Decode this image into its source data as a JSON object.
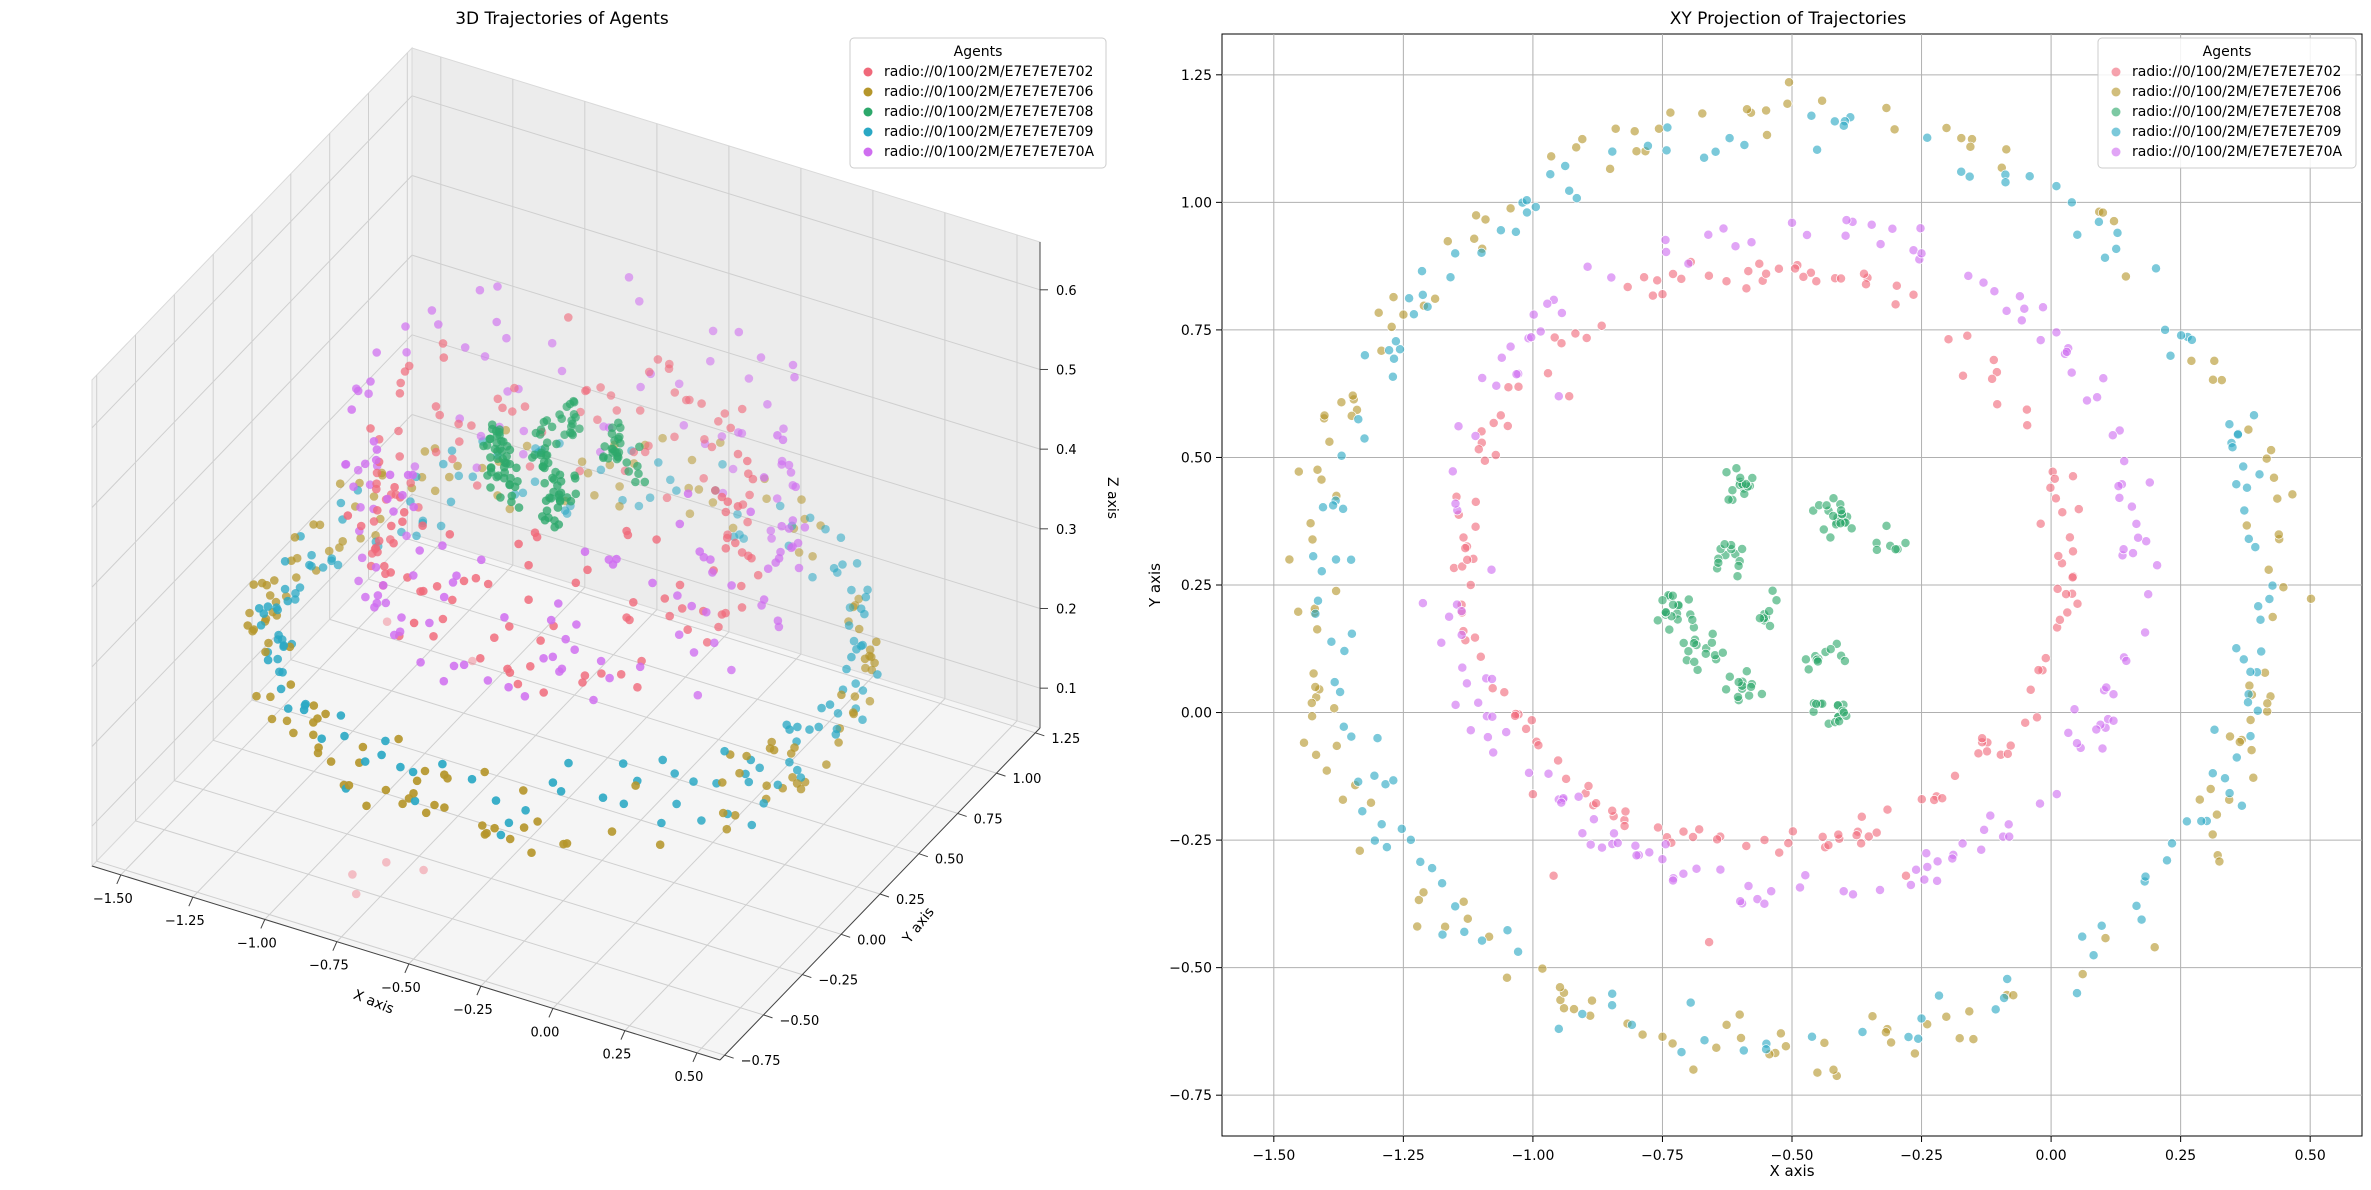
{
  "chart_data": [
    {
      "type": "scatter3d",
      "title": "3D Trajectories of Agents",
      "xlabel": "X axis",
      "ylabel": "Y axis",
      "zlabel": "Z axis",
      "xlim": [
        -1.6,
        0.58
      ],
      "ylim": [
        -0.78,
        1.28
      ],
      "zlim": [
        0.05,
        0.66
      ],
      "xticks": [
        -1.5,
        -1.25,
        -1.0,
        -0.75,
        -0.5,
        -0.25,
        0.0,
        0.25,
        0.5
      ],
      "yticks": [
        -0.75,
        -0.5,
        -0.25,
        0.0,
        0.25,
        0.5,
        0.75,
        1.0,
        1.25
      ],
      "zticks": [
        0.1,
        0.2,
        0.3,
        0.4,
        0.5,
        0.6
      ],
      "xtick_labels": [
        "−1.50",
        "−1.25",
        "−1.00",
        "−0.75",
        "−0.50",
        "−0.25",
        "0.00",
        "0.25",
        "0.50"
      ],
      "ytick_labels": [
        "−0.75",
        "−0.50",
        "−0.25",
        "0.00",
        "0.25",
        "0.50",
        "0.75",
        "1.00",
        "1.25"
      ],
      "ztick_labels": [
        "0.1",
        "0.2",
        "0.3",
        "0.4",
        "0.5",
        "0.6"
      ],
      "legend": {
        "title": "Agents",
        "placement": "upper-right"
      },
      "grid": true
    },
    {
      "type": "scatter",
      "title": "XY Projection of Trajectories",
      "xlabel": "X axis",
      "ylabel": "Y axis",
      "xlim": [
        -1.6,
        0.6
      ],
      "ylim": [
        -0.83,
        1.33
      ],
      "xticks": [
        -1.5,
        -1.25,
        -1.0,
        -0.75,
        -0.5,
        -0.25,
        0.0,
        0.25,
        0.5
      ],
      "yticks": [
        -0.75,
        -0.5,
        -0.25,
        0.0,
        0.25,
        0.5,
        0.75,
        1.0,
        1.25
      ],
      "xtick_labels": [
        "−1.50",
        "−1.25",
        "−1.00",
        "−0.75",
        "−0.50",
        "−0.25",
        "0.00",
        "0.25",
        "0.50"
      ],
      "ytick_labels": [
        "−0.75",
        "−0.50",
        "−0.25",
        "0.00",
        "0.25",
        "0.50",
        "0.75",
        "1.00",
        "1.25"
      ],
      "legend": {
        "title": "Agents",
        "placement": "upper-right"
      },
      "grid": true
    }
  ],
  "series": [
    {
      "name": "radio://0/100/2M/E7E7E7E702",
      "color": "#f0697a",
      "shape": "ring",
      "center": [
        -0.55,
        0.3
      ],
      "radius": 0.58,
      "z": [
        0.3,
        0.5
      ],
      "points": [
        [
          -0.93,
          0.62
        ],
        [
          -0.55,
          0.86
        ],
        [
          -0.17,
          0.66
        ],
        [
          -0.02,
          0.37
        ],
        [
          -0.05,
          -0.02
        ],
        [
          -0.28,
          -0.32
        ],
        [
          -0.66,
          -0.45
        ],
        [
          -1.0,
          -0.16
        ],
        [
          -1.12,
          0.25
        ],
        [
          -0.75,
          0.82
        ],
        [
          -0.3,
          0.8
        ],
        [
          -0.96,
          -0.32
        ]
      ]
    },
    {
      "name": "radio://0/100/2M/E7E7E7E706",
      "color": "#b5962b",
      "shape": "ring",
      "center": [
        -0.5,
        0.25
      ],
      "radius": 0.94,
      "z": [
        0.2,
        0.3
      ],
      "points": [
        [
          -0.55,
          1.18
        ],
        [
          0.1,
          0.98
        ],
        [
          0.42,
          0.28
        ],
        [
          0.2,
          -0.46
        ],
        [
          -0.42,
          -0.7
        ],
        [
          -1.05,
          -0.52
        ],
        [
          -1.42,
          0.05
        ],
        [
          -1.25,
          0.78
        ],
        [
          -0.8,
          1.1
        ],
        [
          -1.47,
          0.3
        ],
        [
          0.32,
          -0.2
        ],
        [
          -0.15,
          -0.64
        ]
      ]
    },
    {
      "name": "radio://0/100/2M/E7E7E7E708",
      "color": "#2da86b",
      "shape": "cluster",
      "center": [
        -0.5,
        0.2
      ],
      "radius": 0.24,
      "z": [
        0.45,
        0.5
      ],
      "points": [
        [
          -0.6,
          0.46
        ],
        [
          -0.42,
          0.42
        ],
        [
          -0.63,
          0.33
        ],
        [
          -0.3,
          0.32
        ],
        [
          -0.7,
          0.12
        ],
        [
          -0.45,
          0.1
        ],
        [
          -0.53,
          0.22
        ],
        [
          -0.4,
          0.0
        ],
        [
          -0.62,
          0.07
        ],
        [
          -0.75,
          0.22
        ]
      ]
    },
    {
      "name": "radio://0/100/2M/E7E7E7E709",
      "color": "#2aa8c4",
      "shape": "ring",
      "center": [
        -0.5,
        0.25
      ],
      "radius": 0.91,
      "z": [
        0.2,
        0.3
      ],
      "points": [
        [
          -0.4,
          1.15
        ],
        [
          0.04,
          1.0
        ],
        [
          0.35,
          0.52
        ],
        [
          0.38,
          0.02
        ],
        [
          0.05,
          -0.55
        ],
        [
          -0.55,
          -0.66
        ],
        [
          -1.15,
          -0.38
        ],
        [
          -1.38,
          0.3
        ],
        [
          -1.15,
          0.9
        ],
        [
          -0.95,
          -0.62
        ],
        [
          0.22,
          0.75
        ],
        [
          -1.3,
          -0.05
        ]
      ]
    },
    {
      "name": "radio://0/100/2M/E7E7E7E70A",
      "color": "#cf6ef0",
      "shape": "ring",
      "center": [
        -0.5,
        0.3
      ],
      "radius": 0.67,
      "z": [
        0.3,
        0.55
      ],
      "points": [
        [
          -0.5,
          0.96
        ],
        [
          -0.02,
          0.73
        ],
        [
          0.14,
          0.32
        ],
        [
          0.05,
          -0.06
        ],
        [
          -0.22,
          -0.33
        ],
        [
          -0.6,
          -0.37
        ],
        [
          -0.97,
          -0.12
        ],
        [
          -1.08,
          0.28
        ],
        [
          -0.95,
          0.62
        ],
        [
          -0.7,
          0.88
        ],
        [
          -0.25,
          0.9
        ],
        [
          -0.8,
          -0.28
        ]
      ]
    }
  ],
  "outliers_3d": [
    [
      -0.82,
      -0.55,
      0.08
    ],
    [
      -0.74,
      -0.48,
      0.09
    ],
    [
      -0.6,
      -0.5,
      0.1
    ],
    [
      -0.78,
      -0.6,
      0.07
    ],
    [
      -1.05,
      0.1,
      0.24
    ],
    [
      -0.7,
      0.0,
      0.25
    ]
  ]
}
